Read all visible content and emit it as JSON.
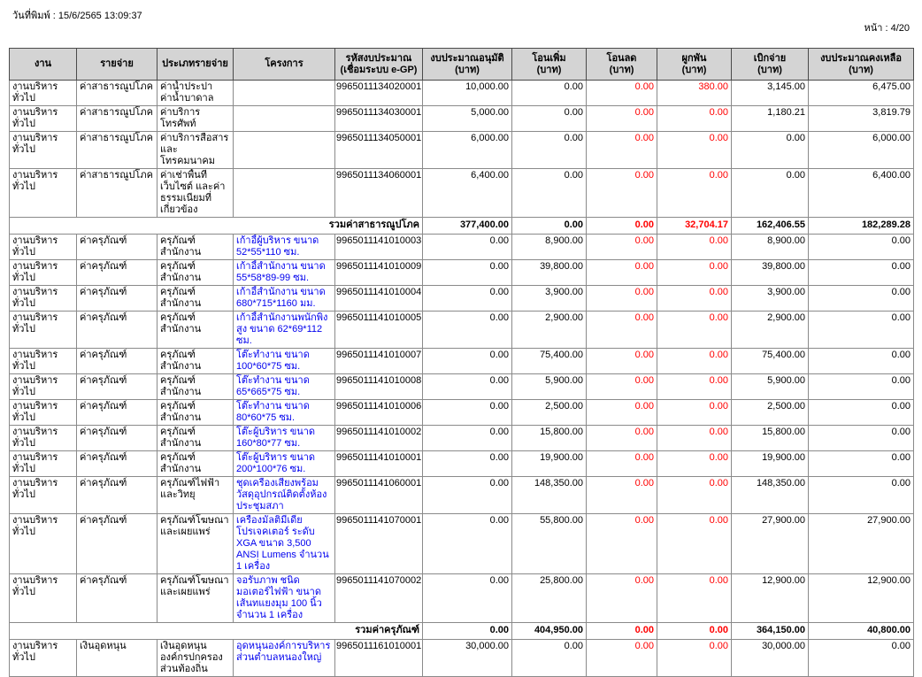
{
  "page": {
    "print_date_label": "วันที่พิมพ์ : 15/6/2565  13:09:37",
    "page_label": "หน้า : 4/20"
  },
  "colors": {
    "header_bg": "#d4d4d4",
    "link_blue": "#0000ee",
    "negative_red": "#ff0000",
    "grid_line": "#8a8a8a",
    "outer_border": "#4a4a4a"
  },
  "table": {
    "columns": [
      {
        "key": "job",
        "label": "งาน",
        "unit": ""
      },
      {
        "key": "expense",
        "label": "รายจ่าย",
        "unit": ""
      },
      {
        "key": "expense_type",
        "label": "ประเภทรายจ่าย",
        "unit": ""
      },
      {
        "key": "project",
        "label": "โครงการ",
        "unit": ""
      },
      {
        "key": "code",
        "label": "รหัสงบประมาณ",
        "unit": "(เชื่อมระบบ e-GP)"
      },
      {
        "key": "approved",
        "label": "งบประมาณอนุมัติ",
        "unit": "(บาท)"
      },
      {
        "key": "transfer_in",
        "label": "โอนเพิ่ม",
        "unit": "(บาท)"
      },
      {
        "key": "transfer_out",
        "label": "โอนลด",
        "unit": "(บาท)"
      },
      {
        "key": "committed",
        "label": "ผูกพัน",
        "unit": "(บาท)"
      },
      {
        "key": "disbursed",
        "label": "เบิกจ่าย",
        "unit": "(บาท)"
      },
      {
        "key": "remaining",
        "label": "งบประมาณคงเหลือ",
        "unit": "(บาท)"
      }
    ],
    "rows": [
      {
        "kind": "data",
        "job": "งานบริหารทั่วไป",
        "expense": "ค่าสาธารณูปโภค",
        "expense_type": "ค่าน้ำประปา ค่าน้ำบาดาล",
        "project": "",
        "code": "9965011134020001",
        "approved": "10,000.00",
        "transfer_in": "0.00",
        "transfer_out": "0.00",
        "committed": "380.00",
        "disbursed": "3,145.00",
        "remaining": "6,475.00"
      },
      {
        "kind": "data",
        "job": "งานบริหารทั่วไป",
        "expense": "ค่าสาธารณูปโภค",
        "expense_type": "ค่าบริการโทรศัพท์",
        "project": "",
        "code": "9965011134030001",
        "approved": "5,000.00",
        "transfer_in": "0.00",
        "transfer_out": "0.00",
        "committed": "0.00",
        "disbursed": "1,180.21",
        "remaining": "3,819.79"
      },
      {
        "kind": "data",
        "job": "งานบริหารทั่วไป",
        "expense": "ค่าสาธารณูปโภค",
        "expense_type": "ค่าบริการสื่อสารและโทรคมนาคม",
        "project": "",
        "code": "9965011134050001",
        "approved": "6,000.00",
        "transfer_in": "0.00",
        "transfer_out": "0.00",
        "committed": "0.00",
        "disbursed": "0.00",
        "remaining": "6,000.00"
      },
      {
        "kind": "data",
        "job": "งานบริหารทั่วไป",
        "expense": "ค่าสาธารณูปโภค",
        "expense_type": "ค่าเช่าพื้นที่เว็บไซต์ และค่าธรรมเนียมที่เกี่ยวข้อง",
        "project": "",
        "code": "9965011134060001",
        "approved": "6,400.00",
        "transfer_in": "0.00",
        "transfer_out": "0.00",
        "committed": "0.00",
        "disbursed": "0.00",
        "remaining": "6,400.00"
      },
      {
        "kind": "summary",
        "label": "รวมค่าสาธารณูปโภค",
        "approved": "377,400.00",
        "transfer_in": "0.00",
        "transfer_out": "0.00",
        "committed": "32,704.17",
        "disbursed": "162,406.55",
        "remaining": "182,289.28"
      },
      {
        "kind": "data",
        "job": "งานบริหารทั่วไป",
        "expense": "ค่าครุภัณฑ์",
        "expense_type": "ครุภัณฑ์สำนักงาน",
        "project": "เก้าอี้ผู้บริหาร ขนาด 52*55*110 ซม.",
        "code": "9965011141010003",
        "approved": "0.00",
        "transfer_in": "8,900.00",
        "transfer_out": "0.00",
        "committed": "0.00",
        "disbursed": "8,900.00",
        "remaining": "0.00"
      },
      {
        "kind": "data",
        "job": "งานบริหารทั่วไป",
        "expense": "ค่าครุภัณฑ์",
        "expense_type": "ครุภัณฑ์สำนักงาน",
        "project": "เก้าอี้สำนักงาน ขนาด 55*58*89-99 ซม.",
        "code": "9965011141010009",
        "approved": "0.00",
        "transfer_in": "39,800.00",
        "transfer_out": "0.00",
        "committed": "0.00",
        "disbursed": "39,800.00",
        "remaining": "0.00"
      },
      {
        "kind": "data",
        "job": "งานบริหารทั่วไป",
        "expense": "ค่าครุภัณฑ์",
        "expense_type": "ครุภัณฑ์สำนักงาน",
        "project": "เก้าอี้สำนักงาน ขนาด 680*715*1160 มม.",
        "code": "9965011141010004",
        "approved": "0.00",
        "transfer_in": "3,900.00",
        "transfer_out": "0.00",
        "committed": "0.00",
        "disbursed": "3,900.00",
        "remaining": "0.00"
      },
      {
        "kind": "data",
        "job": "งานบริหารทั่วไป",
        "expense": "ค่าครุภัณฑ์",
        "expense_type": "ครุภัณฑ์สำนักงาน",
        "project": "เก้าอี้สำนักงานพนักพิงสูง ขนาด 62*69*112 ซม.",
        "code": "9965011141010005",
        "approved": "0.00",
        "transfer_in": "2,900.00",
        "transfer_out": "0.00",
        "committed": "0.00",
        "disbursed": "2,900.00",
        "remaining": "0.00"
      },
      {
        "kind": "data",
        "job": "งานบริหารทั่วไป",
        "expense": "ค่าครุภัณฑ์",
        "expense_type": "ครุภัณฑ์สำนักงาน",
        "project": "โต๊ะทำงาน ขนาด 100*60*75 ซม.",
        "code": "9965011141010007",
        "approved": "0.00",
        "transfer_in": "75,400.00",
        "transfer_out": "0.00",
        "committed": "0.00",
        "disbursed": "75,400.00",
        "remaining": "0.00"
      },
      {
        "kind": "data",
        "job": "งานบริหารทั่วไป",
        "expense": "ค่าครุภัณฑ์",
        "expense_type": "ครุภัณฑ์สำนักงาน",
        "project": "โต๊ะทำงาน ขนาด 65*665*75 ซม.",
        "code": "9965011141010008",
        "approved": "0.00",
        "transfer_in": "5,900.00",
        "transfer_out": "0.00",
        "committed": "0.00",
        "disbursed": "5,900.00",
        "remaining": "0.00"
      },
      {
        "kind": "data",
        "job": "งานบริหารทั่วไป",
        "expense": "ค่าครุภัณฑ์",
        "expense_type": "ครุภัณฑ์สำนักงาน",
        "project": "โต๊ะทำงาน ขนาด 80*60*75 ซม.",
        "code": "9965011141010006",
        "approved": "0.00",
        "transfer_in": "2,500.00",
        "transfer_out": "0.00",
        "committed": "0.00",
        "disbursed": "2,500.00",
        "remaining": "0.00"
      },
      {
        "kind": "data",
        "job": "งานบริหารทั่วไป",
        "expense": "ค่าครุภัณฑ์",
        "expense_type": "ครุภัณฑ์สำนักงาน",
        "project": "โต๊ะผู้บริหาร ขนาด 160*80*77 ซม.",
        "code": "9965011141010002",
        "approved": "0.00",
        "transfer_in": "15,800.00",
        "transfer_out": "0.00",
        "committed": "0.00",
        "disbursed": "15,800.00",
        "remaining": "0.00"
      },
      {
        "kind": "data",
        "job": "งานบริหารทั่วไป",
        "expense": "ค่าครุภัณฑ์",
        "expense_type": "ครุภัณฑ์สำนักงาน",
        "project": "โต๊ะผู้บริหาร ขนาด 200*100*76 ซม.",
        "code": "9965011141010001",
        "approved": "0.00",
        "transfer_in": "19,900.00",
        "transfer_out": "0.00",
        "committed": "0.00",
        "disbursed": "19,900.00",
        "remaining": "0.00"
      },
      {
        "kind": "data",
        "job": "งานบริหารทั่วไป",
        "expense": "ค่าครุภัณฑ์",
        "expense_type": "ครุภัณฑ์ไฟฟ้าและวิทยุ",
        "project": "ชุดเครื่องเสียงพร้อมวัสดุอุปกรณ์ติดตั้งห้องประชุมสภา",
        "code": "9965011141060001",
        "approved": "0.00",
        "transfer_in": "148,350.00",
        "transfer_out": "0.00",
        "committed": "0.00",
        "disbursed": "148,350.00",
        "remaining": "0.00"
      },
      {
        "kind": "data",
        "job": "งานบริหารทั่วไป",
        "expense": "ค่าครุภัณฑ์",
        "expense_type": "ครุภัณฑ์โฆษณาและเผยแพร่",
        "project": "เครื่องมัลติมีเดียโปรเจคเตอร์ ระดับ XGA  ขนาด 3,500 ANSI Lumens จำนวน 1 เครื่อง",
        "code": "9965011141070001",
        "approved": "0.00",
        "transfer_in": "55,800.00",
        "transfer_out": "0.00",
        "committed": "0.00",
        "disbursed": "27,900.00",
        "remaining": "27,900.00"
      },
      {
        "kind": "data",
        "job": "งานบริหารทั่วไป",
        "expense": "ค่าครุภัณฑ์",
        "expense_type": "ครุภัณฑ์โฆษณาและเผยแพร่",
        "project": "จอรับภาพ ชนิดมอเตอร์ไฟฟ้า ขนาดเส้นทแยงมุม 100 นิ้ว  จำนวน 1 เครื่อง",
        "code": "9965011141070002",
        "approved": "0.00",
        "transfer_in": "25,800.00",
        "transfer_out": "0.00",
        "committed": "0.00",
        "disbursed": "12,900.00",
        "remaining": "12,900.00"
      },
      {
        "kind": "summary",
        "label": "รวมค่าครุภัณฑ์",
        "approved": "0.00",
        "transfer_in": "404,950.00",
        "transfer_out": "0.00",
        "committed": "0.00",
        "disbursed": "364,150.00",
        "remaining": "40,800.00"
      },
      {
        "kind": "data",
        "job": "งานบริหารทั่วไป",
        "expense": "เงินอุดหนุน",
        "expense_type": "เงินอุดหนุนองค์กรปกครองส่วนท้องถิ่น",
        "project": "อุดหนุนองค์การบริหารส่วนตำบลหนองใหญ่",
        "code": "9965011161010001",
        "approved": "30,000.00",
        "transfer_in": "0.00",
        "transfer_out": "0.00",
        "committed": "0.00",
        "disbursed": "30,000.00",
        "remaining": "0.00"
      }
    ]
  }
}
